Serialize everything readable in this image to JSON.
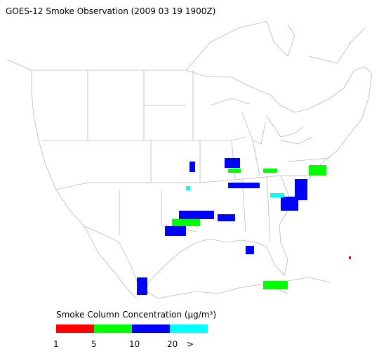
{
  "title": "GOES-12 Smoke Observation (2009 03 19  1900Z)",
  "legend": {
    "label": "Smoke Column Concentration (μg/m³)",
    "colors": [
      "#ff0000",
      "#00ff00",
      "#0000ff",
      "#00ffff"
    ],
    "ticks": [
      "1",
      "5",
      "10",
      "20",
      ">"
    ]
  }
}
